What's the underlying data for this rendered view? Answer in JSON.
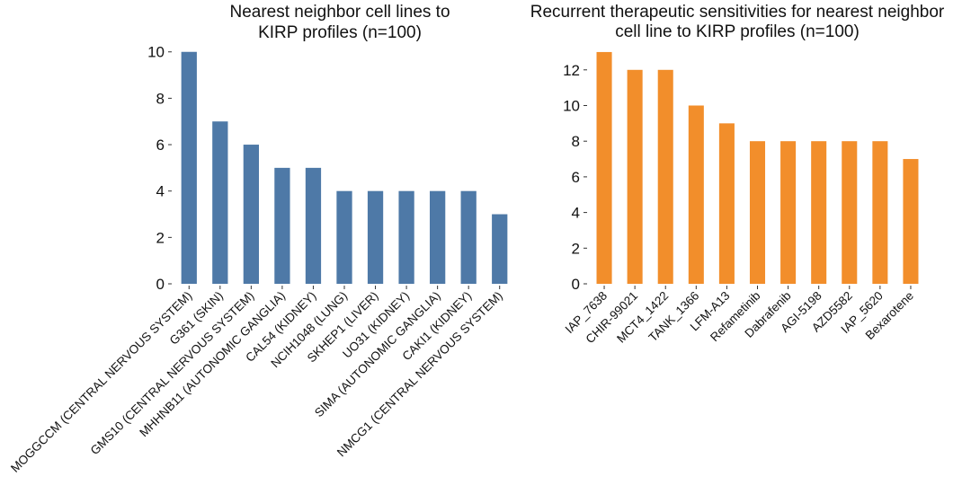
{
  "chart_data": [
    {
      "type": "bar",
      "title": [
        "Nearest neighbor cell lines to",
        "KIRP profiles (n=100)"
      ],
      "xlabel": "",
      "ylabel": "",
      "categories": [
        "MOGGCCM (CENTRAL NERVOUS SYSTEM)",
        "G361 (SKIN)",
        "GMS10 (CENTRAL NERVOUS SYSTEM)",
        "MHHNB11 (AUTONOMIC GANGLIA)",
        "CAL54 (KIDNEY)",
        "NCIH1048 (LUNG)",
        "SKHEP1 (LIVER)",
        "UO31 (KIDNEY)",
        "SIMA (AUTONOMIC GANGLIA)",
        "CAKI1 (KIDNEY)",
        "NMCG1 (CENTRAL NERVOUS SYSTEM)"
      ],
      "values": [
        10,
        7,
        6,
        5,
        5,
        4,
        4,
        4,
        4,
        4,
        3
      ],
      "ylim": [
        0,
        10.3
      ],
      "yticks": [
        0,
        2,
        4,
        6,
        8,
        10
      ],
      "color": "#4e79a7",
      "grid": false
    },
    {
      "type": "bar",
      "title": [
        "Recurrent therapeutic sensitivities for nearest neighbor",
        "cell line to KIRP profiles (n=100)"
      ],
      "xlabel": "",
      "ylabel": "",
      "categories": [
        "IAP_7638",
        "CHIR-99021",
        "MCT4_1422",
        "TANK_1366",
        "LFM-A13",
        "Refametinib",
        "Dabrafenib",
        "AGI-5198",
        "AZD5582",
        "IAP_5620",
        "Bexarotene"
      ],
      "values": [
        13,
        12,
        12,
        10,
        9,
        8,
        8,
        8,
        8,
        8,
        7
      ],
      "ylim": [
        0,
        13.4
      ],
      "yticks": [
        0,
        2,
        4,
        6,
        8,
        10,
        12
      ],
      "color": "#f28e2b",
      "grid": false
    }
  ]
}
